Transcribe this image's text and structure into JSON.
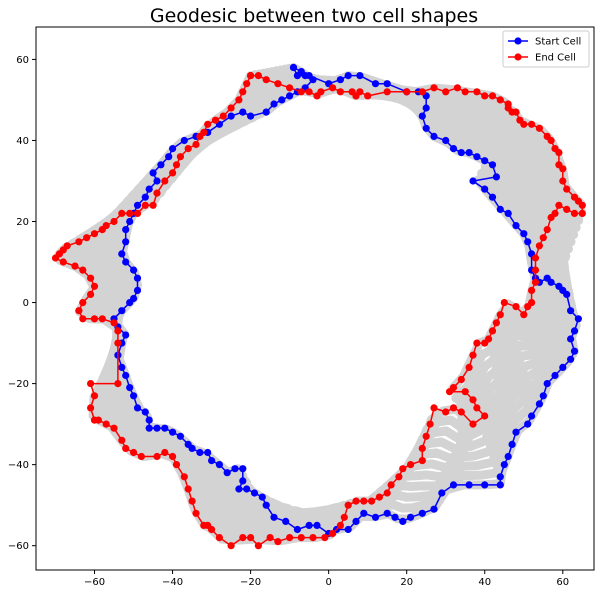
{
  "chart_data": {
    "type": "line",
    "title": "Geodesic between two cell shapes",
    "xlabel": "",
    "ylabel": "",
    "xlim": [
      -75,
      68
    ],
    "ylim": [
      -66,
      68
    ],
    "xticks": [
      -60,
      -40,
      -20,
      0,
      20,
      40,
      60
    ],
    "yticks": [
      -60,
      -40,
      -20,
      0,
      20,
      40,
      60
    ],
    "grid": false,
    "legend_position": "top-right",
    "interpolation_color": "#d3d3d3",
    "series": [
      {
        "name": "Start Cell",
        "color": "#0000ff",
        "points": [
          [
            -9,
            58
          ],
          [
            -8,
            56
          ],
          [
            -5,
            56
          ],
          [
            0,
            54
          ],
          [
            3,
            55
          ],
          [
            5,
            56
          ],
          [
            8,
            56
          ],
          [
            12,
            54
          ],
          [
            15,
            54
          ],
          [
            20,
            52
          ],
          [
            23,
            52
          ],
          [
            25,
            51
          ],
          [
            25,
            48
          ],
          [
            24,
            46
          ],
          [
            25,
            43
          ],
          [
            27,
            41
          ],
          [
            30,
            40
          ],
          [
            32,
            38
          ],
          [
            34,
            37
          ],
          [
            36,
            37
          ],
          [
            38,
            36
          ],
          [
            40,
            35
          ],
          [
            42,
            34
          ],
          [
            43,
            31
          ],
          [
            37,
            30
          ],
          [
            40,
            28
          ],
          [
            42,
            26
          ],
          [
            44,
            23
          ],
          [
            46,
            22
          ],
          [
            48,
            19
          ],
          [
            50,
            17
          ],
          [
            51,
            15
          ],
          [
            52,
            12
          ],
          [
            52,
            8
          ],
          [
            53,
            6
          ],
          [
            54,
            5
          ],
          [
            56,
            6
          ],
          [
            57,
            5
          ],
          [
            59,
            4
          ],
          [
            60,
            3
          ],
          [
            61,
            2
          ],
          [
            62,
            -2
          ],
          [
            64,
            -4
          ],
          [
            63,
            -7
          ],
          [
            62,
            -9
          ],
          [
            63,
            -12
          ],
          [
            62,
            -14
          ],
          [
            60,
            -16
          ],
          [
            58,
            -18
          ],
          [
            56,
            -20
          ],
          [
            55,
            -23
          ],
          [
            54,
            -25
          ],
          [
            52,
            -28
          ],
          [
            51,
            -30
          ],
          [
            48,
            -32
          ],
          [
            47,
            -35
          ],
          [
            46,
            -38
          ],
          [
            45,
            -40
          ],
          [
            44,
            -43
          ],
          [
            44,
            -45
          ],
          [
            40,
            -45
          ],
          [
            36,
            -45
          ],
          [
            32,
            -45
          ],
          [
            29,
            -47
          ],
          [
            27,
            -51
          ],
          [
            24,
            -52
          ],
          [
            21,
            -53
          ],
          [
            19,
            -54
          ],
          [
            17,
            -53
          ],
          [
            15,
            -52
          ],
          [
            12,
            -53
          ],
          [
            9,
            -52
          ],
          [
            7,
            -54
          ],
          [
            5,
            -56
          ],
          [
            2,
            -56
          ],
          [
            0,
            -57
          ],
          [
            -3,
            -55
          ],
          [
            -5,
            -55
          ],
          [
            -8,
            -56
          ],
          [
            -11,
            -54
          ],
          [
            -14,
            -53
          ],
          [
            -16,
            -50
          ],
          [
            -17,
            -48
          ],
          [
            -19,
            -47
          ],
          [
            -21,
            -46
          ],
          [
            -23,
            -46
          ],
          [
            -22,
            -44
          ],
          [
            -22,
            -41
          ],
          [
            -24,
            -41
          ],
          [
            -26,
            -42
          ],
          [
            -28,
            -40
          ],
          [
            -30,
            -39
          ],
          [
            -31,
            -37
          ],
          [
            -33,
            -37
          ],
          [
            -35,
            -36
          ],
          [
            -36,
            -35
          ],
          [
            -38,
            -33
          ],
          [
            -40,
            -32
          ],
          [
            -42,
            -31
          ],
          [
            -44,
            -31
          ],
          [
            -46,
            -31
          ],
          [
            -46,
            -29
          ],
          [
            -47,
            -27
          ],
          [
            -49,
            -26
          ],
          [
            -50,
            -23
          ],
          [
            -51,
            -21
          ],
          [
            -52,
            -18
          ],
          [
            -53,
            -16
          ],
          [
            -54,
            -13
          ],
          [
            -53,
            -10
          ],
          [
            -52,
            -8
          ],
          [
            -54,
            -6
          ],
          [
            -55,
            -4
          ],
          [
            -53,
            -2
          ],
          [
            -51,
            0
          ],
          [
            -50,
            1
          ],
          [
            -49,
            3
          ],
          [
            -49,
            6
          ],
          [
            -50,
            8
          ],
          [
            -52,
            10
          ],
          [
            -53,
            12
          ],
          [
            -52,
            15
          ],
          [
            -52,
            18
          ],
          [
            -51,
            20
          ],
          [
            -50,
            22
          ],
          [
            -49,
            24
          ],
          [
            -47,
            26
          ],
          [
            -46,
            28
          ],
          [
            -44,
            30
          ],
          [
            -45,
            32
          ],
          [
            -43,
            34
          ],
          [
            -41,
            36
          ],
          [
            -40,
            38
          ],
          [
            -37,
            40
          ],
          [
            -34,
            41
          ],
          [
            -31,
            42
          ],
          [
            -28,
            44
          ],
          [
            -25,
            46
          ],
          [
            -22,
            47
          ],
          [
            -20,
            46
          ],
          [
            -16,
            47
          ],
          [
            -14,
            49
          ],
          [
            -12,
            50
          ],
          [
            -10,
            51
          ],
          [
            -8,
            52
          ],
          [
            -6,
            53
          ],
          [
            -4,
            55
          ],
          [
            -6,
            56
          ],
          [
            -7,
            57
          ],
          [
            -9,
            58
          ]
        ]
      },
      {
        "name": "End Cell",
        "color": "#ff0000",
        "points": [
          [
            -20,
            56
          ],
          [
            -18,
            56
          ],
          [
            -16,
            55
          ],
          [
            -13,
            54
          ],
          [
            -10,
            53
          ],
          [
            -7,
            52
          ],
          [
            -5,
            52
          ],
          [
            -3,
            51
          ],
          [
            -2,
            52
          ],
          [
            1,
            53
          ],
          [
            3,
            52
          ],
          [
            6,
            52
          ],
          [
            7,
            51
          ],
          [
            8,
            52
          ],
          [
            10,
            51
          ],
          [
            15,
            52
          ],
          [
            20,
            52
          ],
          [
            24,
            52
          ],
          [
            27,
            53
          ],
          [
            30,
            52
          ],
          [
            33,
            53
          ],
          [
            35,
            52
          ],
          [
            38,
            52
          ],
          [
            40,
            51
          ],
          [
            42,
            51
          ],
          [
            44,
            50
          ],
          [
            46,
            49
          ],
          [
            46,
            48
          ],
          [
            47,
            47
          ],
          [
            48,
            47
          ],
          [
            49,
            45
          ],
          [
            50,
            44
          ],
          [
            52,
            44
          ],
          [
            54,
            43
          ],
          [
            56,
            41
          ],
          [
            57,
            40
          ],
          [
            58,
            38
          ],
          [
            59,
            37
          ],
          [
            59,
            34
          ],
          [
            60,
            33
          ],
          [
            60,
            30
          ],
          [
            61,
            28
          ],
          [
            63,
            26
          ],
          [
            64,
            25
          ],
          [
            65,
            24
          ],
          [
            65,
            22
          ],
          [
            63,
            22
          ],
          [
            61,
            23
          ],
          [
            59,
            24
          ],
          [
            58,
            22
          ],
          [
            57,
            21
          ],
          [
            56,
            18
          ],
          [
            55,
            16
          ],
          [
            54,
            14
          ],
          [
            53,
            11
          ],
          [
            53,
            8
          ],
          [
            53,
            5
          ],
          [
            52,
            3
          ],
          [
            52,
            0
          ],
          [
            51,
            -1
          ],
          [
            50,
            -3
          ],
          [
            48,
            -1
          ],
          [
            45,
            0
          ],
          [
            44,
            -3
          ],
          [
            43,
            -5
          ],
          [
            42,
            -7
          ],
          [
            41,
            -9
          ],
          [
            40,
            -10
          ],
          [
            38,
            -10
          ],
          [
            37,
            -13
          ],
          [
            36,
            -16
          ],
          [
            34,
            -19
          ],
          [
            32,
            -21
          ],
          [
            31,
            -22
          ],
          [
            35,
            -22
          ],
          [
            37,
            -24
          ],
          [
            38,
            -26
          ],
          [
            40,
            -28
          ],
          [
            37,
            -30
          ],
          [
            34,
            -27
          ],
          [
            32,
            -26
          ],
          [
            30,
            -27
          ],
          [
            27,
            -26
          ],
          [
            26,
            -30
          ],
          [
            25,
            -33
          ],
          [
            24,
            -36
          ],
          [
            24,
            -39
          ],
          [
            21,
            -40
          ],
          [
            19,
            -41
          ],
          [
            18,
            -43
          ],
          [
            16,
            -45
          ],
          [
            15,
            -47
          ],
          [
            13,
            -48
          ],
          [
            11,
            -49
          ],
          [
            9,
            -49
          ],
          [
            7,
            -49
          ],
          [
            5,
            -50
          ],
          [
            4,
            -53
          ],
          [
            3,
            -55
          ],
          [
            1,
            -57
          ],
          [
            -1,
            -58
          ],
          [
            -4,
            -58
          ],
          [
            -7,
            -58
          ],
          [
            -10,
            -58
          ],
          [
            -13,
            -59
          ],
          [
            -15,
            -58
          ],
          [
            -18,
            -60
          ],
          [
            -20,
            -58
          ],
          [
            -22,
            -58
          ],
          [
            -25,
            -60
          ],
          [
            -28,
            -58
          ],
          [
            -30,
            -56
          ],
          [
            -31,
            -55
          ],
          [
            -32,
            -55
          ],
          [
            -34,
            -52
          ],
          [
            -35,
            -49
          ],
          [
            -36,
            -46
          ],
          [
            -37,
            -43
          ],
          [
            -39,
            -40
          ],
          [
            -40,
            -38
          ],
          [
            -42,
            -37
          ],
          [
            -44,
            -38
          ],
          [
            -48,
            -38
          ],
          [
            -50,
            -37
          ],
          [
            -52,
            -36
          ],
          [
            -53,
            -34
          ],
          [
            -55,
            -31
          ],
          [
            -57,
            -30
          ],
          [
            -59,
            -29
          ],
          [
            -60,
            -29
          ],
          [
            -61,
            -26
          ],
          [
            -60,
            -23
          ],
          [
            -61,
            -20
          ],
          [
            -54,
            -20
          ],
          [
            -54,
            -10
          ],
          [
            -54,
            -7
          ],
          [
            -55,
            -5
          ],
          [
            -58,
            -4
          ],
          [
            -60,
            -4
          ],
          [
            -63,
            -4
          ],
          [
            -64,
            -2
          ],
          [
            -63,
            0
          ],
          [
            -61,
            2
          ],
          [
            -60,
            4
          ],
          [
            -61,
            6
          ],
          [
            -63,
            8
          ],
          [
            -65,
            9
          ],
          [
            -68,
            10
          ],
          [
            -70,
            11
          ],
          [
            -69,
            12
          ],
          [
            -68,
            13
          ],
          [
            -67,
            14
          ],
          [
            -64,
            15
          ],
          [
            -62,
            16
          ],
          [
            -60,
            17
          ],
          [
            -58,
            18
          ],
          [
            -57,
            19
          ],
          [
            -55,
            20
          ],
          [
            -53,
            22
          ],
          [
            -51,
            22
          ],
          [
            -49,
            22
          ],
          [
            -47,
            24
          ],
          [
            -45,
            24
          ],
          [
            -44,
            27
          ],
          [
            -42,
            30
          ],
          [
            -40,
            32
          ],
          [
            -39,
            34
          ],
          [
            -38,
            36
          ],
          [
            -36,
            38
          ],
          [
            -34,
            39
          ],
          [
            -33,
            41
          ],
          [
            -32,
            42
          ],
          [
            -31,
            44
          ],
          [
            -29,
            45
          ],
          [
            -27,
            46
          ],
          [
            -25,
            48
          ],
          [
            -23,
            50
          ],
          [
            -22,
            52
          ],
          [
            -21,
            54
          ],
          [
            -20,
            56
          ]
        ]
      }
    ]
  }
}
